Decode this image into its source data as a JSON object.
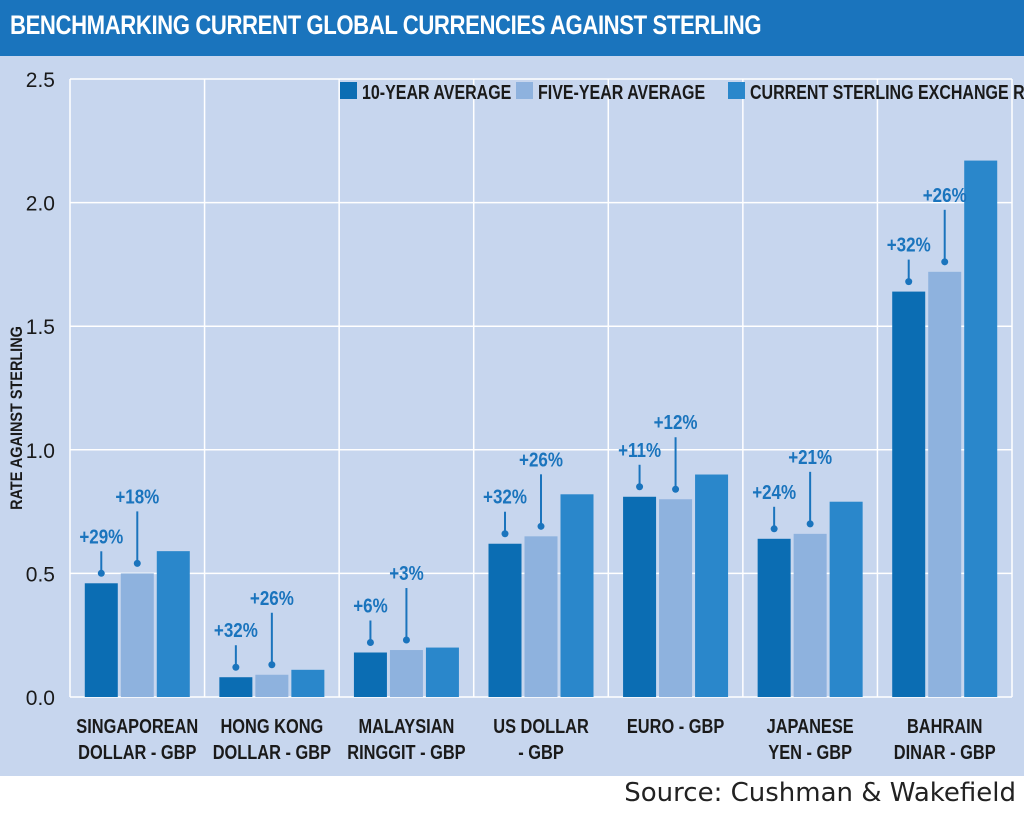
{
  "title": "BENCHMARKING CURRENT GLOBAL CURRENCIES AGAINST STERLING",
  "source": "Source: Cushman & Wakefield",
  "colors": {
    "title_bg": "#1a74bd",
    "panel_bg": "#c7d6ee",
    "ten_year": "#0b6db3",
    "five_year": "#8eb2de",
    "current": "#2a87cb",
    "annotation": "#1a74bd"
  },
  "chart_data": {
    "type": "bar",
    "ylabel": "RATE AGAINST STERLING",
    "xlabel": "",
    "ylim": [
      0,
      2.5
    ],
    "yticks": [
      "0.0",
      "0.5",
      "1.0",
      "1.5",
      "2.0",
      "2.5"
    ],
    "grid": true,
    "legend_position": "top-right",
    "categories": [
      [
        "SINGAPOREAN",
        "DOLLAR - GBP"
      ],
      [
        "HONG KONG",
        "DOLLAR - GBP"
      ],
      [
        "MALAYSIAN",
        "RINGGIT - GBP"
      ],
      [
        "US DOLLAR",
        "- GBP"
      ],
      [
        "EURO - GBP"
      ],
      [
        "JAPANESE",
        "YEN - GBP"
      ],
      [
        "BAHRAIN",
        "DINAR - GBP"
      ]
    ],
    "series": [
      {
        "name": "10-YEAR AVERAGE",
        "values": [
          0.46,
          0.08,
          0.18,
          0.62,
          0.81,
          0.64,
          1.64
        ]
      },
      {
        "name": "FIVE-YEAR AVERAGE",
        "values": [
          0.5,
          0.09,
          0.19,
          0.65,
          0.8,
          0.66,
          1.72
        ]
      },
      {
        "name": "CURRENT STERLING EXCHANGE RATE",
        "values": [
          0.59,
          0.11,
          0.2,
          0.82,
          0.9,
          0.79,
          2.17
        ]
      }
    ],
    "annotations": {
      "ten_year_change": [
        "+29%",
        "+32%",
        "+6%",
        "+32%",
        "+11%",
        "+24%",
        "+32%"
      ],
      "five_year_change": [
        "+18%",
        "+26%",
        "+3%",
        "+26%",
        "+12%",
        "+21%",
        "+26%"
      ]
    }
  }
}
